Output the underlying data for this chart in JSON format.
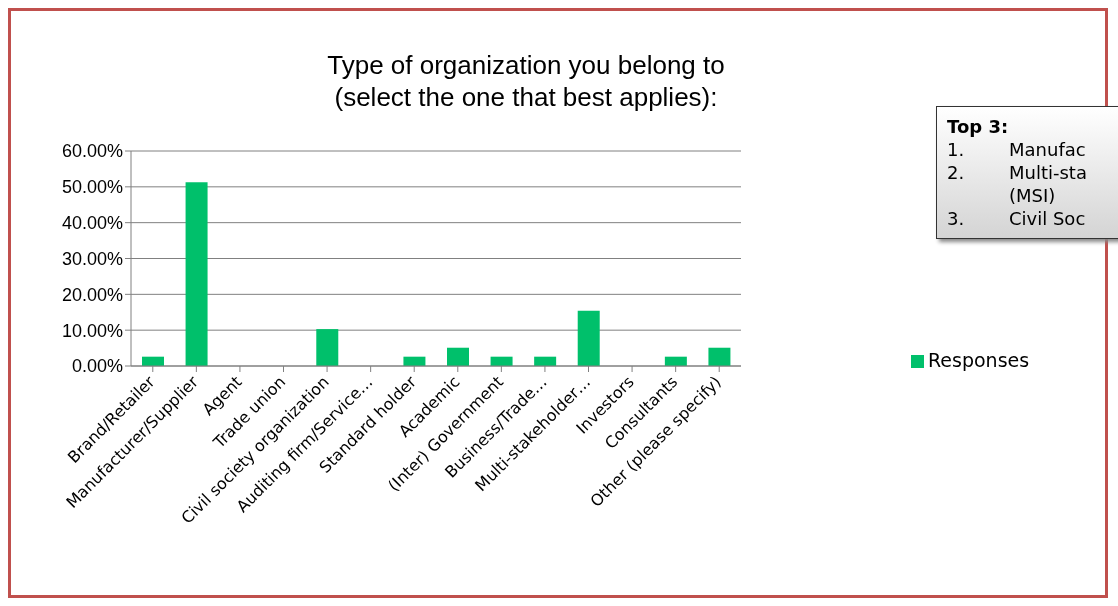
{
  "chart_data": {
    "type": "bar",
    "title": "Type of organization you belong to\n(select the one that best applies):",
    "categories": [
      "Brand/Retailer",
      "Manufacturer/Supplier",
      "Agent",
      "Trade union",
      "Civil society organization",
      "Auditing firm/Service…",
      "Standard holder",
      "Academic",
      "(Inter) Government",
      "Business/Trade…",
      "Multi-stakeholder…",
      "Investors",
      "Consultants",
      "Other (please specify)"
    ],
    "series": [
      {
        "name": "Responses",
        "color": "#00c06b",
        "values": [
          2.6,
          51.3,
          0,
          0,
          10.3,
          0,
          2.6,
          5.1,
          2.6,
          2.6,
          15.4,
          0,
          2.6,
          5.1
        ]
      }
    ],
    "ylim": [
      0,
      60
    ],
    "yticks": [
      {
        "value": 0,
        "label": "0.00%"
      },
      {
        "value": 10,
        "label": "10.00%"
      },
      {
        "value": 20,
        "label": "20.00%"
      },
      {
        "value": 30,
        "label": "30.00%"
      },
      {
        "value": 40,
        "label": "40.00%"
      },
      {
        "value": 50,
        "label": "50.00%"
      },
      {
        "value": 60,
        "label": "60.00%"
      }
    ],
    "grid": "y",
    "legend": "right",
    "annotations": [
      "Top 3:",
      "1. Manufac",
      "2. Multi-sta (MSI)",
      "3. Civil Soc"
    ]
  }
}
